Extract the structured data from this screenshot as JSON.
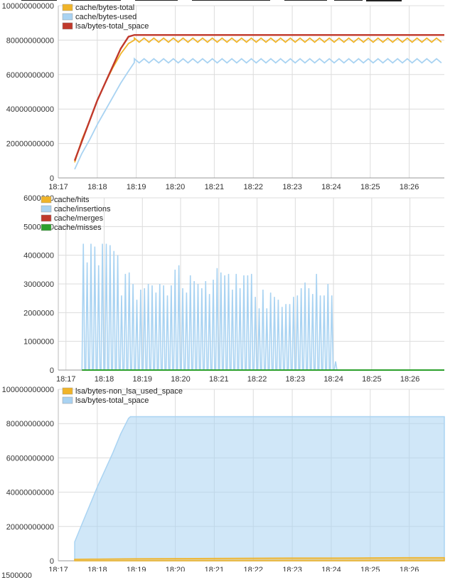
{
  "chart_data": [
    {
      "type": "line",
      "title": "",
      "xlabel": "",
      "ylabel": "",
      "x_ticks": [
        "18:17",
        "18:18",
        "18:19",
        "18:20",
        "18:21",
        "18:22",
        "18:23",
        "18:24",
        "18:25",
        "18:26"
      ],
      "y_ticks": [
        "0",
        "20000000000",
        "40000000000",
        "60000000000",
        "80000000000",
        "100000000000"
      ],
      "ylim": [
        0,
        100000000000
      ],
      "xlim_minutes": [
        17,
        26.9
      ],
      "grid": true,
      "legend_position": "top-left",
      "series": [
        {
          "name": "cache/bytes-total",
          "color": "#f0b429",
          "style": "sawtooth",
          "x_minutes": [
            17.42,
            17.6,
            17.8,
            18.0,
            18.2,
            18.4,
            18.6,
            18.8,
            18.95,
            19.5,
            20.5,
            21.5,
            22.5,
            23.5,
            24.5,
            25.5,
            26.9
          ],
          "values": [
            9000000000,
            22000000000,
            33000000000,
            45000000000,
            55000000000,
            64000000000,
            72000000000,
            78000000000,
            80000000000,
            80000000000,
            80000000000,
            80000000000,
            80000000000,
            80000000000,
            80000000000,
            80000000000,
            80000000000
          ]
        },
        {
          "name": "cache/bytes-used",
          "color": "#a9d3f2",
          "style": "sawtooth",
          "x_minutes": [
            17.42,
            17.6,
            17.8,
            18.0,
            18.2,
            18.4,
            18.6,
            18.8,
            18.95,
            19.5,
            20.5,
            21.5,
            22.5,
            23.5,
            24.5,
            25.5,
            26.9
          ],
          "values": [
            5000000000,
            14000000000,
            22000000000,
            31000000000,
            39000000000,
            47000000000,
            55000000000,
            62000000000,
            67000000000,
            68000000000,
            68000000000,
            68000000000,
            68000000000,
            68000000000,
            68000000000,
            68000000000,
            67000000000
          ]
        },
        {
          "name": "lsa/bytes-total_space",
          "color": "#c0392b",
          "style": "line",
          "x_minutes": [
            17.42,
            17.6,
            17.8,
            18.0,
            18.2,
            18.4,
            18.6,
            18.8,
            18.95,
            19.5,
            20.5,
            21.5,
            22.5,
            23.5,
            24.5,
            25.5,
            26.9
          ],
          "values": [
            10000000000,
            21000000000,
            33000000000,
            45000000000,
            55000000000,
            65000000000,
            75000000000,
            82000000000,
            83000000000,
            83000000000,
            83000000000,
            83000000000,
            83000000000,
            83000000000,
            83000000000,
            83000000000,
            83000000000
          ]
        }
      ]
    },
    {
      "type": "line",
      "title": "",
      "xlabel": "",
      "ylabel": "",
      "x_ticks": [
        "18:17",
        "18:18",
        "18:19",
        "18:20",
        "18:21",
        "18:22",
        "18:23",
        "18:24",
        "18:25",
        "18:26"
      ],
      "y_ticks": [
        "0",
        "1000000",
        "2000000",
        "3000000",
        "4000000",
        "5000000",
        "6000000"
      ],
      "ylim": [
        0,
        6000000
      ],
      "xlim_minutes": [
        16.8,
        26.9
      ],
      "grid": true,
      "legend_position": "top-left",
      "series": [
        {
          "name": "cache/hits",
          "color": "#f0b429",
          "values": [
            0
          ]
        },
        {
          "name": "cache/insertions",
          "color": "#a9d3f2",
          "style": "spikes",
          "spike_start_minute": 17.42,
          "spike_step_minutes": 0.1,
          "values": [
            4400000,
            3750000,
            4400000,
            4300000,
            3650000,
            4400000,
            4400000,
            4350000,
            4150000,
            4000000,
            2600000,
            3350000,
            3400000,
            3000000,
            2450000,
            2800000,
            2850000,
            3000000,
            2950000,
            2700000,
            3000000,
            2950000,
            2600000,
            2950000,
            3500000,
            3650000,
            2850000,
            2700000,
            3300000,
            3100000,
            3000000,
            2850000,
            3100000,
            2650000,
            3150000,
            3550000,
            3400000,
            3300000,
            3350000,
            2800000,
            3350000,
            2850000,
            3300000,
            3300000,
            3350000,
            2550000,
            2150000,
            2800000,
            2150000,
            2700000,
            2550000,
            2450000,
            2200000,
            2300000,
            2300000,
            2550000,
            2600000,
            2850000,
            3050000,
            2850000,
            2650000,
            3350000,
            2600000,
            2600000,
            3000000,
            2600000,
            300000
          ]
        },
        {
          "name": "cache/merges",
          "color": "#c0392b",
          "values": [
            0
          ]
        },
        {
          "name": "cache/misses",
          "color": "#2ca02c",
          "values": [
            0
          ]
        }
      ]
    },
    {
      "type": "area",
      "title": "",
      "xlabel": "",
      "ylabel": "",
      "x_ticks": [
        "18:17",
        "18:18",
        "18:19",
        "18:20",
        "18:21",
        "18:22",
        "18:23",
        "18:24",
        "18:25",
        "18:26"
      ],
      "y_ticks": [
        "0",
        "20000000000",
        "40000000000",
        "60000000000",
        "80000000000",
        "100000000000"
      ],
      "ylim": [
        0,
        100000000000
      ],
      "xlim_minutes": [
        17,
        26.9
      ],
      "grid": true,
      "legend_position": "top-left",
      "series": [
        {
          "name": "lsa/bytes-non_lsa_used_space",
          "color": "#f0b429",
          "x_minutes": [
            17.42,
            18.0,
            19.0,
            20.0,
            21.0,
            22.0,
            23.0,
            24.0,
            25.0,
            26.0,
            26.9
          ],
          "values": [
            900000000,
            1000000000,
            1200000000,
            1300000000,
            1400000000,
            1500000000,
            1600000000,
            1600000000,
            1700000000,
            1800000000,
            1800000000
          ]
        },
        {
          "name": "lsa/bytes-total_space",
          "color": "#a9d3f2",
          "x_minutes": [
            17.42,
            17.6,
            17.8,
            18.0,
            18.2,
            18.4,
            18.6,
            18.8,
            18.85,
            19.5,
            20.5,
            21.5,
            22.5,
            23.5,
            24.5,
            25.5,
            26.9
          ],
          "values": [
            11000000000,
            21000000000,
            32000000000,
            43000000000,
            53000000000,
            63000000000,
            74000000000,
            83000000000,
            84000000000,
            84000000000,
            84000000000,
            84000000000,
            84000000000,
            84000000000,
            84000000000,
            84000000000,
            84000000000
          ]
        }
      ]
    }
  ],
  "next_panel_top_tick": "1500000"
}
